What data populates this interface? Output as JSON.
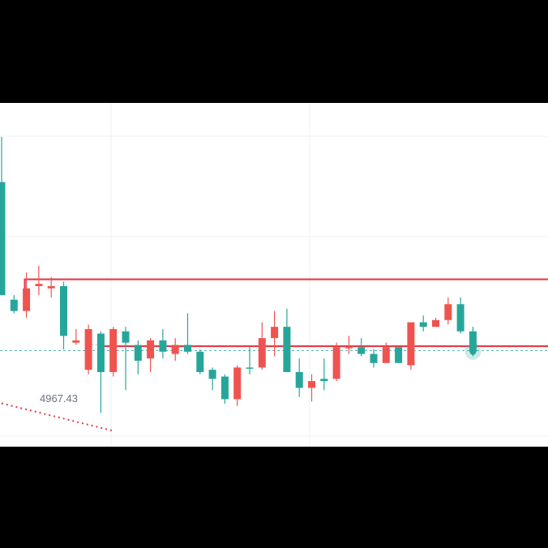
{
  "chart_data": {
    "type": "candlestick",
    "grid": true,
    "colors": {
      "up": "#26a69a",
      "down": "#ef5350",
      "support_line": "#e63946",
      "resistance_line": "#e63946",
      "trendline": "#e63946",
      "current_price_line": "#26a69a",
      "grid": "#eef0f3",
      "label_text": "#6b7280"
    },
    "candles": [
      {
        "o": 4990,
        "h": 5060,
        "l": 4990,
        "c": 5040,
        "color": "up"
      },
      {
        "o": 4988,
        "h": 4990,
        "l": 4982,
        "c": 4983,
        "color": "up"
      },
      {
        "o": 4983,
        "h": 5000,
        "l": 4980,
        "c": 4993,
        "color": "down"
      },
      {
        "o": 4995,
        "h": 5003,
        "l": 4990,
        "c": 4994,
        "color": "down"
      },
      {
        "o": 4993,
        "h": 4998,
        "l": 4989,
        "c": 4994,
        "color": "down"
      },
      {
        "o": 4994,
        "h": 4996,
        "l": 4966,
        "c": 4972,
        "color": "up"
      },
      {
        "o": 4970,
        "h": 4975,
        "l": 4968,
        "c": 4969,
        "color": "down"
      },
      {
        "o": 4975,
        "h": 4977,
        "l": 4955,
        "c": 4957,
        "color": "down"
      },
      {
        "o": 4973,
        "h": 4974,
        "l": 4938,
        "c": 4956,
        "color": "up"
      },
      {
        "o": 4975,
        "h": 4976,
        "l": 4954,
        "c": 4956,
        "color": "down"
      },
      {
        "o": 4974,
        "h": 4976,
        "l": 4948,
        "c": 4969,
        "color": "up"
      },
      {
        "o": 4968,
        "h": 4970,
        "l": 4955,
        "c": 4961,
        "color": "up"
      },
      {
        "o": 4970,
        "h": 4971,
        "l": 4956,
        "c": 4962,
        "color": "down"
      },
      {
        "o": 4970,
        "h": 4975,
        "l": 4962,
        "c": 4965,
        "color": "up"
      },
      {
        "o": 4968,
        "h": 4971,
        "l": 4961,
        "c": 4964,
        "color": "down"
      },
      {
        "o": 4968,
        "h": 4982,
        "l": 4964,
        "c": 4965,
        "color": "up"
      },
      {
        "o": 4965,
        "h": 4966,
        "l": 4955,
        "c": 4956,
        "color": "up"
      },
      {
        "o": 4957,
        "h": 4958,
        "l": 4948,
        "c": 4953,
        "color": "up"
      },
      {
        "o": 4954,
        "h": 4955,
        "l": 4942,
        "c": 4944,
        "color": "up"
      },
      {
        "o": 4944,
        "h": 4959,
        "l": 4941,
        "c": 4958,
        "color": "down"
      },
      {
        "o": 4958,
        "h": 4967,
        "l": 4955,
        "c": 4958,
        "color": "up"
      },
      {
        "o": 4958,
        "h": 4978,
        "l": 4957,
        "c": 4971,
        "color": "down"
      },
      {
        "o": 4971,
        "h": 4983,
        "l": 4963,
        "c": 4976,
        "color": "down"
      },
      {
        "o": 4976,
        "h": 4984,
        "l": 4956,
        "c": 4956,
        "color": "up"
      },
      {
        "o": 4956,
        "h": 4962,
        "l": 4945,
        "c": 4949,
        "color": "up"
      },
      {
        "o": 4949,
        "h": 4955,
        "l": 4943,
        "c": 4952,
        "color": "down"
      },
      {
        "o": 4952,
        "h": 4962,
        "l": 4948,
        "c": 4953,
        "color": "up"
      },
      {
        "o": 4953,
        "h": 4969,
        "l": 4952,
        "c": 4967,
        "color": "down"
      },
      {
        "o": 4967,
        "h": 4972,
        "l": 4964,
        "c": 4967,
        "color": "down"
      },
      {
        "o": 4967,
        "h": 4971,
        "l": 4963,
        "c": 4964,
        "color": "up"
      },
      {
        "o": 4964,
        "h": 4966,
        "l": 4958,
        "c": 4960,
        "color": "up"
      },
      {
        "o": 4960,
        "h": 4969,
        "l": 4960,
        "c": 4967,
        "color": "down"
      },
      {
        "o": 4967,
        "h": 4967,
        "l": 4960,
        "c": 4960,
        "color": "up"
      },
      {
        "o": 4959,
        "h": 4978,
        "l": 4957,
        "c": 4978,
        "color": "down"
      },
      {
        "o": 4978,
        "h": 4981,
        "l": 4974,
        "c": 4976,
        "color": "up"
      },
      {
        "o": 4976,
        "h": 4980,
        "l": 4976,
        "c": 4979,
        "color": "down"
      },
      {
        "o": 4979,
        "h": 4989,
        "l": 4977,
        "c": 4986,
        "color": "down"
      },
      {
        "o": 4986,
        "h": 4989,
        "l": 4973,
        "c": 4974,
        "color": "up"
      },
      {
        "o": 4974,
        "h": 4976,
        "l": 4963,
        "c": 4965,
        "color": "up"
      }
    ],
    "support_level": {
      "value": 4967.43,
      "label": "4967.43"
    },
    "resistance_level": {
      "value": 4997
    },
    "current_price": {
      "value": 4965.5
    },
    "trendline": {
      "from": {
        "index": -8,
        "value": 4953
      },
      "to": {
        "index": 9,
        "value": 4930
      }
    },
    "ylim": [
      4923,
      5075
    ]
  }
}
